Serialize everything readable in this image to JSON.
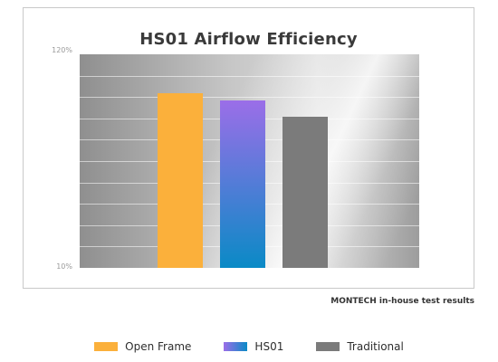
{
  "chart_data": {
    "type": "bar",
    "title": "HS01 Airflow Efficiency",
    "categories": [
      "Open Frame",
      "HS01",
      "Traditional"
    ],
    "values": [
      100,
      96,
      88
    ],
    "ylim": [
      10,
      120
    ],
    "yticks": [
      "120%",
      "10%"
    ],
    "grid": true,
    "legend_position": "bottom",
    "colors": {
      "Open Frame": [
        "#fbb03b",
        "#fbb03b"
      ],
      "HS01": [
        "#9b6ee8",
        "#0a8ac6"
      ],
      "Traditional": [
        "#7b7b7b",
        "#7b7b7b"
      ]
    },
    "source": "MONTECH in-house test results"
  }
}
